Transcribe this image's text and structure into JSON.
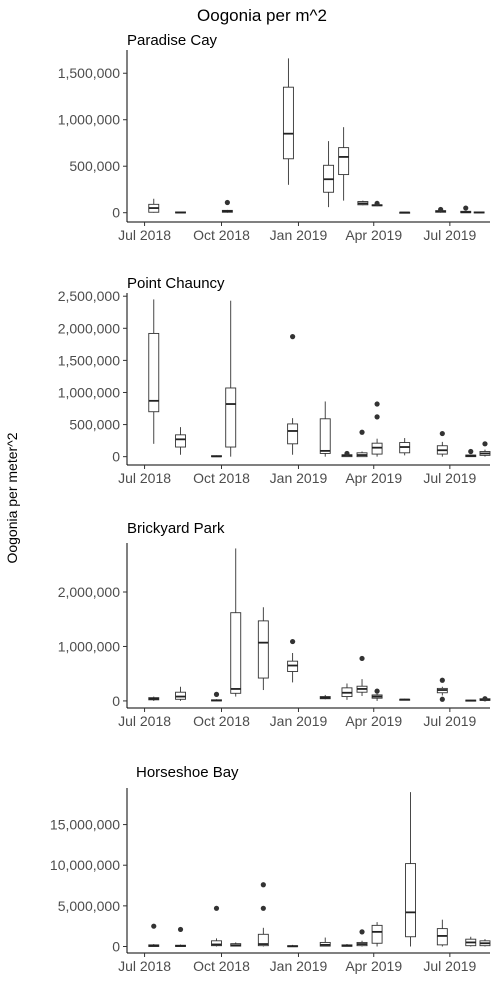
{
  "chart_data": {
    "type": "box",
    "title": "Oogonia per m^2",
    "ylabel": "Oogonia per meter^2",
    "x_tick_labels": [
      "Jul 2018",
      "Oct 2018",
      "Jan 2019",
      "Apr 2019",
      "Jul 2019"
    ],
    "x_tick_dates": [
      "2018-07-01",
      "2018-10-01",
      "2019-01-01",
      "2019-04-01",
      "2019-07-01"
    ],
    "xlim": [
      "2018-06-10",
      "2019-08-18"
    ],
    "panels": [
      {
        "title": "Paradise Cay",
        "ylim": [
          -100000,
          1750000
        ],
        "yticks": [
          0,
          500000,
          1000000,
          1500000
        ],
        "ytick_labels": [
          "0",
          "500,000",
          "1,000,000",
          "1,500,000"
        ],
        "boxes": [
          {
            "date": "2018-07-12",
            "min": 0,
            "q1": 5000,
            "median": 50000,
            "q3": 90000,
            "max": 150000,
            "outliers": []
          },
          {
            "date": "2018-08-13",
            "min": 0,
            "q1": 0,
            "median": 2000,
            "q3": 8000,
            "max": 10000,
            "outliers": []
          },
          {
            "date": "2018-10-08",
            "min": 0,
            "q1": 5000,
            "median": 15000,
            "q3": 25000,
            "max": 30000,
            "outliers": [
              110000
            ]
          },
          {
            "date": "2018-12-20",
            "min": 300000,
            "q1": 580000,
            "median": 850000,
            "q3": 1350000,
            "max": 1660000,
            "outliers": []
          },
          {
            "date": "2019-02-06",
            "min": 60000,
            "q1": 220000,
            "median": 360000,
            "q3": 510000,
            "max": 770000,
            "outliers": []
          },
          {
            "date": "2019-02-24",
            "min": 130000,
            "q1": 410000,
            "median": 600000,
            "q3": 700000,
            "max": 920000,
            "outliers": []
          },
          {
            "date": "2019-03-19",
            "min": 80000,
            "q1": 85000,
            "median": 100000,
            "q3": 120000,
            "max": 130000,
            "outliers": []
          },
          {
            "date": "2019-04-05",
            "min": 70000,
            "q1": 75000,
            "median": 80000,
            "q3": 85000,
            "max": 90000,
            "outliers": [
              100000
            ]
          },
          {
            "date": "2019-05-08",
            "min": 0,
            "q1": 0,
            "median": 2000,
            "q3": 5000,
            "max": 8000,
            "outliers": []
          },
          {
            "date": "2019-06-20",
            "min": 0,
            "q1": 5000,
            "median": 15000,
            "q3": 22000,
            "max": 30000,
            "outliers": [
              35000
            ]
          },
          {
            "date": "2019-07-20",
            "min": 0,
            "q1": 0,
            "median": 5000,
            "q3": 15000,
            "max": 20000,
            "outliers": [
              50000
            ]
          },
          {
            "date": "2019-08-05",
            "min": 0,
            "q1": 0,
            "median": 3000,
            "q3": 8000,
            "max": 12000,
            "outliers": []
          }
        ]
      },
      {
        "title": "Point Chauncy",
        "ylim": [
          -130000,
          2550000
        ],
        "yticks": [
          0,
          500000,
          1000000,
          1500000,
          2000000,
          2500000
        ],
        "ytick_labels": [
          "0",
          "500,000",
          "1,000,000",
          "1,500,000",
          "2,000,000",
          "2,500,000"
        ],
        "boxes": [
          {
            "date": "2018-07-12",
            "min": 200000,
            "q1": 700000,
            "median": 870000,
            "q3": 1920000,
            "max": 2450000,
            "outliers": []
          },
          {
            "date": "2018-08-13",
            "min": 30000,
            "q1": 150000,
            "median": 270000,
            "q3": 340000,
            "max": 460000,
            "outliers": []
          },
          {
            "date": "2018-09-25",
            "min": 0,
            "q1": 0,
            "median": 5000,
            "q3": 15000,
            "max": 20000,
            "outliers": []
          },
          {
            "date": "2018-10-12",
            "min": 0,
            "q1": 150000,
            "median": 820000,
            "q3": 1070000,
            "max": 2430000,
            "outliers": []
          },
          {
            "date": "2018-12-25",
            "min": 30000,
            "q1": 200000,
            "median": 400000,
            "q3": 510000,
            "max": 600000,
            "outliers": [
              1870000
            ]
          },
          {
            "date": "2019-02-02",
            "min": 0,
            "q1": 50000,
            "median": 90000,
            "q3": 590000,
            "max": 860000,
            "outliers": []
          },
          {
            "date": "2019-02-28",
            "min": 0,
            "q1": 0,
            "median": 20000,
            "q3": 30000,
            "max": 50000,
            "outliers": [
              50000
            ]
          },
          {
            "date": "2019-03-18",
            "min": 0,
            "q1": 0,
            "median": 25000,
            "q3": 60000,
            "max": 80000,
            "outliers": [
              380000
            ]
          },
          {
            "date": "2019-04-05",
            "min": 0,
            "q1": 40000,
            "median": 140000,
            "q3": 210000,
            "max": 280000,
            "outliers": [
              620000,
              820000
            ]
          },
          {
            "date": "2019-05-08",
            "min": 20000,
            "q1": 60000,
            "median": 150000,
            "q3": 220000,
            "max": 290000,
            "outliers": []
          },
          {
            "date": "2019-06-22",
            "min": 0,
            "q1": 40000,
            "median": 100000,
            "q3": 170000,
            "max": 230000,
            "outliers": [
              360000
            ]
          },
          {
            "date": "2019-07-26",
            "min": 0,
            "q1": 0,
            "median": 15000,
            "q3": 25000,
            "max": 30000,
            "outliers": [
              80000
            ]
          },
          {
            "date": "2019-08-12",
            "min": 0,
            "q1": 20000,
            "median": 50000,
            "q3": 80000,
            "max": 110000,
            "outliers": [
              200000
            ]
          }
        ]
      },
      {
        "title": "Brickyard Park",
        "ylim": [
          -130000,
          2900000
        ],
        "yticks": [
          0,
          1000000,
          2000000
        ],
        "ytick_labels": [
          "0",
          "1,000,000",
          "2,000,000"
        ],
        "boxes": [
          {
            "date": "2018-07-12",
            "min": 0,
            "q1": 20000,
            "median": 40000,
            "q3": 60000,
            "max": 80000,
            "outliers": []
          },
          {
            "date": "2018-08-13",
            "min": 0,
            "q1": 30000,
            "median": 80000,
            "q3": 160000,
            "max": 260000,
            "outliers": []
          },
          {
            "date": "2018-09-25",
            "min": 0,
            "q1": 0,
            "median": 10000,
            "q3": 20000,
            "max": 30000,
            "outliers": [
              120000
            ]
          },
          {
            "date": "2018-10-18",
            "min": 80000,
            "q1": 140000,
            "median": 220000,
            "q3": 1620000,
            "max": 2800000,
            "outliers": []
          },
          {
            "date": "2018-11-20",
            "min": 200000,
            "q1": 420000,
            "median": 1070000,
            "q3": 1470000,
            "max": 1720000,
            "outliers": []
          },
          {
            "date": "2018-12-25",
            "min": 340000,
            "q1": 540000,
            "median": 650000,
            "q3": 730000,
            "max": 880000,
            "outliers": [
              1090000
            ]
          },
          {
            "date": "2019-02-02",
            "min": 30000,
            "q1": 40000,
            "median": 60000,
            "q3": 80000,
            "max": 110000,
            "outliers": []
          },
          {
            "date": "2019-02-28",
            "min": 20000,
            "q1": 80000,
            "median": 150000,
            "q3": 240000,
            "max": 320000,
            "outliers": []
          },
          {
            "date": "2019-03-18",
            "min": 90000,
            "q1": 160000,
            "median": 220000,
            "q3": 270000,
            "max": 400000,
            "outliers": [
              780000
            ]
          },
          {
            "date": "2019-04-05",
            "min": 0,
            "q1": 50000,
            "median": 80000,
            "q3": 110000,
            "max": 130000,
            "outliers": [
              180000
            ]
          },
          {
            "date": "2019-05-08",
            "min": 10000,
            "q1": 15000,
            "median": 25000,
            "q3": 30000,
            "max": 40000,
            "outliers": []
          },
          {
            "date": "2019-06-22",
            "min": 100000,
            "q1": 150000,
            "median": 200000,
            "q3": 230000,
            "max": 260000,
            "outliers": [
              380000,
              30000
            ]
          },
          {
            "date": "2019-07-26",
            "min": 0,
            "q1": 0,
            "median": 5000,
            "q3": 15000,
            "max": 20000,
            "outliers": []
          },
          {
            "date": "2019-08-12",
            "min": 0,
            "q1": 10000,
            "median": 20000,
            "q3": 40000,
            "max": 50000,
            "outliers": [
              40000
            ]
          }
        ]
      },
      {
        "title": "Horseshoe Bay",
        "ylim": [
          -800000,
          19500000
        ],
        "yticks": [
          0,
          5000000,
          10000000,
          15000000
        ],
        "ytick_labels": [
          "0",
          "5,000,000",
          "10,000,000",
          "15,000,000"
        ],
        "boxes": [
          {
            "date": "2018-07-12",
            "min": 0,
            "q1": 0,
            "median": 100000,
            "q3": 200000,
            "max": 300000,
            "outliers": [
              2500000
            ]
          },
          {
            "date": "2018-08-13",
            "min": 0,
            "q1": 0,
            "median": 80000,
            "q3": 150000,
            "max": 250000,
            "outliers": [
              2100000
            ]
          },
          {
            "date": "2018-09-25",
            "min": 0,
            "q1": 100000,
            "median": 250000,
            "q3": 700000,
            "max": 1000000,
            "outliers": [
              4700000
            ]
          },
          {
            "date": "2018-10-18",
            "min": 0,
            "q1": 50000,
            "median": 150000,
            "q3": 350000,
            "max": 500000,
            "outliers": []
          },
          {
            "date": "2018-11-20",
            "min": 0,
            "q1": 100000,
            "median": 300000,
            "q3": 1500000,
            "max": 2300000,
            "outliers": [
              4700000,
              7600000
            ]
          },
          {
            "date": "2018-12-25",
            "min": 0,
            "q1": 0,
            "median": 30000,
            "q3": 100000,
            "max": 200000,
            "outliers": []
          },
          {
            "date": "2019-02-02",
            "min": 0,
            "q1": 50000,
            "median": 200000,
            "q3": 500000,
            "max": 1100000,
            "outliers": []
          },
          {
            "date": "2019-02-28",
            "min": 0,
            "q1": 20000,
            "median": 100000,
            "q3": 200000,
            "max": 300000,
            "outliers": []
          },
          {
            "date": "2019-03-18",
            "min": 0,
            "q1": 100000,
            "median": 300000,
            "q3": 500000,
            "max": 700000,
            "outliers": [
              1800000
            ]
          },
          {
            "date": "2019-04-05",
            "min": 0,
            "q1": 400000,
            "median": 1800000,
            "q3": 2600000,
            "max": 3000000,
            "outliers": []
          },
          {
            "date": "2019-05-15",
            "min": 0,
            "q1": 1200000,
            "median": 4200000,
            "q3": 10200000,
            "max": 19000000,
            "outliers": []
          },
          {
            "date": "2019-06-22",
            "min": 0,
            "q1": 200000,
            "median": 1300000,
            "q3": 2200000,
            "max": 3300000,
            "outliers": []
          },
          {
            "date": "2019-07-26",
            "min": 0,
            "q1": 100000,
            "median": 500000,
            "q3": 900000,
            "max": 1200000,
            "outliers": []
          },
          {
            "date": "2019-08-12",
            "min": 0,
            "q1": 100000,
            "median": 400000,
            "q3": 700000,
            "max": 900000,
            "outliers": []
          }
        ]
      }
    ]
  }
}
